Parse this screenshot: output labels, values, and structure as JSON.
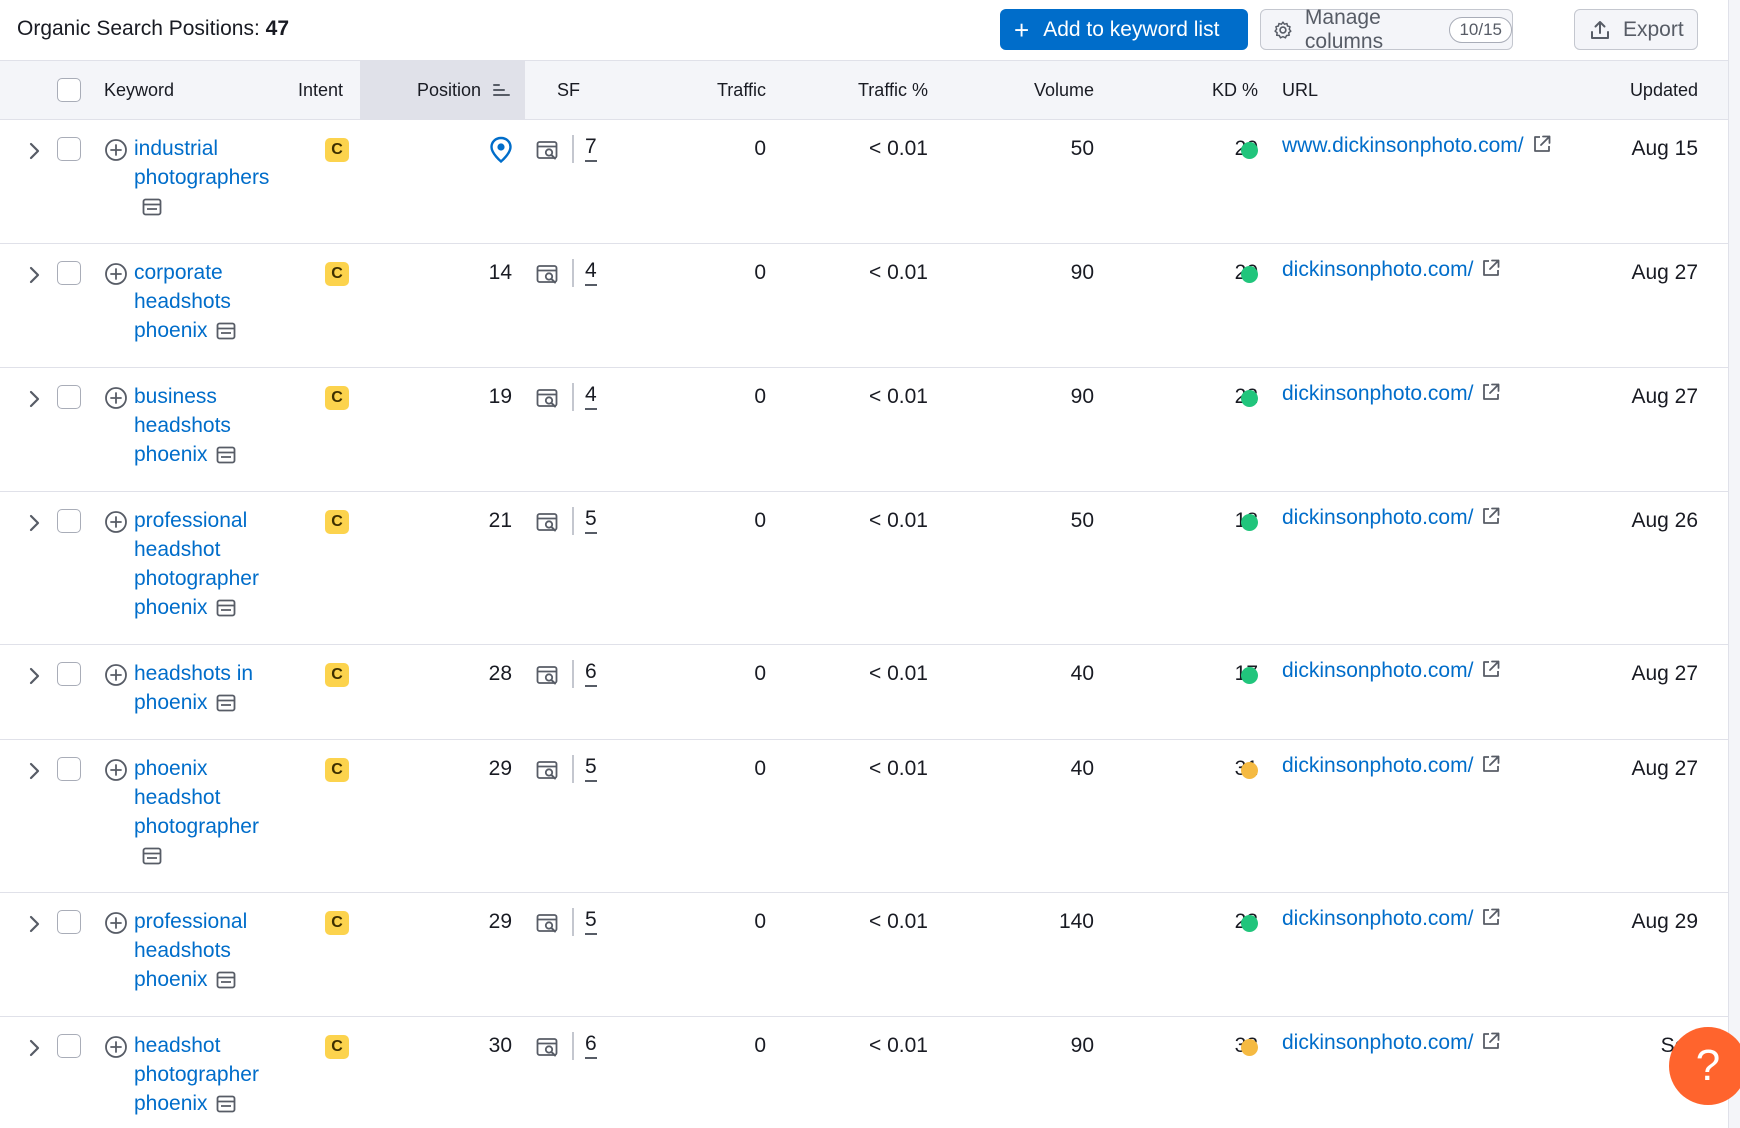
{
  "header": {
    "title_label": "Organic Search Positions:",
    "title_count": "47",
    "add_button": "Add to keyword list",
    "manage_button": "Manage columns",
    "manage_count": "10/15",
    "export_button": "Export"
  },
  "columns": {
    "keyword": "Keyword",
    "intent": "Intent",
    "position": "Position",
    "sf": "SF",
    "traffic": "Traffic",
    "traffic_pct": "Traffic %",
    "volume": "Volume",
    "kd": "KD %",
    "url": "URL",
    "updated": "Updated"
  },
  "colors": {
    "kd_green": "#21c57c",
    "kd_yellow": "#f5ba42",
    "link": "#006dca",
    "intent_commercial": "#fcd34d",
    "help": "#ff642d"
  },
  "rows": [
    {
      "keyword": "industrial photographers",
      "intent": "C",
      "position": "",
      "position_icon": "location-pin-icon",
      "sf": "7",
      "traffic": "0",
      "traffic_pct": "< 0.01",
      "volume": "50",
      "kd": "20",
      "kd_color": "#21c57c",
      "url": "www.dickinsonphoto.com/",
      "updated": "Aug 15"
    },
    {
      "keyword": "corporate headshots phoenix",
      "intent": "C",
      "position": "14",
      "sf": "4",
      "traffic": "0",
      "traffic_pct": "< 0.01",
      "volume": "90",
      "kd": "20",
      "kd_color": "#21c57c",
      "url": "dickinsonphoto.com/",
      "updated": "Aug 27"
    },
    {
      "keyword": "business headshots phoenix",
      "intent": "C",
      "position": "19",
      "sf": "4",
      "traffic": "0",
      "traffic_pct": "< 0.01",
      "volume": "90",
      "kd": "22",
      "kd_color": "#21c57c",
      "url": "dickinsonphoto.com/",
      "updated": "Aug 27"
    },
    {
      "keyword": "professional headshot photographer phoenix",
      "intent": "C",
      "position": "21",
      "sf": "5",
      "traffic": "0",
      "traffic_pct": "< 0.01",
      "volume": "50",
      "kd": "18",
      "kd_color": "#21c57c",
      "url": "dickinsonphoto.com/",
      "updated": "Aug 26"
    },
    {
      "keyword": "headshots in phoenix",
      "intent": "C",
      "position": "28",
      "sf": "6",
      "traffic": "0",
      "traffic_pct": "< 0.01",
      "volume": "40",
      "kd": "17",
      "kd_color": "#21c57c",
      "url": "dickinsonphoto.com/",
      "updated": "Aug 27"
    },
    {
      "keyword": "phoenix headshot photographer",
      "intent": "C",
      "position": "29",
      "sf": "5",
      "traffic": "0",
      "traffic_pct": "< 0.01",
      "volume": "40",
      "kd": "31",
      "kd_color": "#f5ba42",
      "url": "dickinsonphoto.com/",
      "updated": "Aug 27"
    },
    {
      "keyword": "professional headshots phoenix",
      "intent": "C",
      "position": "29",
      "sf": "5",
      "traffic": "0",
      "traffic_pct": "< 0.01",
      "volume": "140",
      "kd": "23",
      "kd_color": "#21c57c",
      "url": "dickinsonphoto.com/",
      "updated": "Aug 29"
    },
    {
      "keyword": "headshot photographer phoenix",
      "intent": "C",
      "position": "30",
      "sf": "6",
      "traffic": "0",
      "traffic_pct": "< 0.01",
      "volume": "90",
      "kd": "33",
      "kd_color": "#f5ba42",
      "url": "dickinsonphoto.com/",
      "updated": "Sep"
    }
  ],
  "help": {
    "label": "?"
  }
}
